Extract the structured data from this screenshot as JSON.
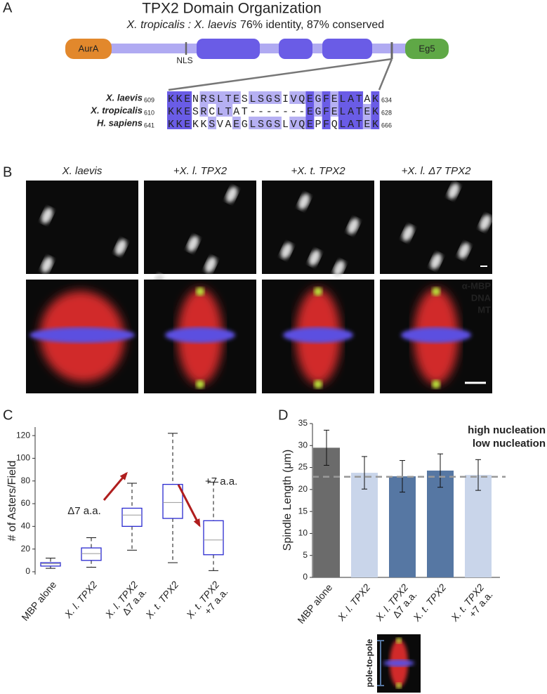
{
  "panel_labels": [
    "A",
    "B",
    "C",
    "D"
  ],
  "panel_a": {
    "title": "TPX2 Domain Organization",
    "subtitle_species": "X. tropicalis : X. laevis",
    "subtitle_stats": "76% identity, 87% conserved",
    "domains": [
      "AurA",
      "Eg5"
    ],
    "motif": "NLS",
    "alignment": [
      {
        "name": "X. laevis",
        "start": "609",
        "sequence": "KKENRSLTESLSGSIVQEGFELATAK",
        "end": "634"
      },
      {
        "name": "X. tropicalis",
        "start": "610",
        "sequence": "KKESRCLTAT-------EGFELATEK",
        "end": "628"
      },
      {
        "name": "H. sapiens",
        "start": "641",
        "sequence": "KKEKKSVAEGLSGSLVQEPFQLATEK",
        "end": "666"
      }
    ]
  },
  "panel_b": {
    "columns": [
      "X. laevis",
      "+X. l.  TPX2",
      "+X. t.  TPX2",
      "+X. l. Δ7  TPX2"
    ],
    "channels": [
      {
        "name": "α-MBP",
        "color": "#a6e03a"
      },
      {
        "name": "DNA",
        "color": "#4f8fe8"
      },
      {
        "name": "MT",
        "color": "#e8332a"
      }
    ]
  },
  "chart_data": [
    {
      "type": "box",
      "ylabel": "# of Asters/Field",
      "categories": [
        [
          "MBP alone"
        ],
        [
          "X. l. TPX2"
        ],
        [
          "X. l. TPX2",
          "Δ7 a.a."
        ],
        [
          "X. t. TPX2"
        ],
        [
          "X. t. TPX2",
          "+7 a.a."
        ]
      ],
      "boxes": [
        {
          "min": 3,
          "q1": 5,
          "median": 7,
          "q3": 8,
          "max": 12
        },
        {
          "min": 4,
          "q1": 10,
          "median": 16,
          "q3": 21,
          "max": 30
        },
        {
          "min": 19,
          "q1": 40,
          "median": 50,
          "q3": 56,
          "max": 78
        },
        {
          "min": 8,
          "q1": 47,
          "median": 61,
          "q3": 77,
          "max": 122
        },
        {
          "min": 1,
          "q1": 15,
          "median": 28,
          "q3": 45,
          "max": 79
        }
      ],
      "color": "#2a2ad0",
      "median_color": "#999999",
      "ylim": [
        -2.5,
        127.5
      ],
      "yticks": [
        0,
        20,
        40,
        60,
        80,
        100,
        120
      ],
      "annotations": [
        {
          "text": "Δ7 a.a.",
          "color": "#b01e1e"
        },
        {
          "text": "+7 a.a.",
          "color": "#b01e1e"
        }
      ]
    },
    {
      "type": "bar",
      "ylabel": "Spindle Length (μm)",
      "categories": [
        [
          "MBP alone"
        ],
        [
          "X. l. TPX2"
        ],
        [
          "X. l. TPX2",
          "Δ7 a.a."
        ],
        [
          "X. t. TPX2"
        ],
        [
          "X. t. TPX2",
          "+7 a.a."
        ]
      ],
      "values": [
        29.5,
        23.8,
        23,
        24.3,
        23.3
      ],
      "errors": [
        4,
        3.7,
        3.6,
        3.8,
        3.5
      ],
      "colors": [
        "#6b6b6b",
        "#c9d5ea",
        "#5677a3",
        "#5677a3",
        "#c9d5ea"
      ],
      "reference_line": 22.9,
      "legend": [
        {
          "name": "high nucleation",
          "color": "#5677a3"
        },
        {
          "name": "low nucleation",
          "color": "#c9d5ea"
        }
      ],
      "ylim": [
        0,
        35
      ],
      "yticks": [
        0,
        5,
        10,
        15,
        20,
        25,
        30,
        35
      ],
      "inset_label": "pole-to-pole"
    }
  ]
}
